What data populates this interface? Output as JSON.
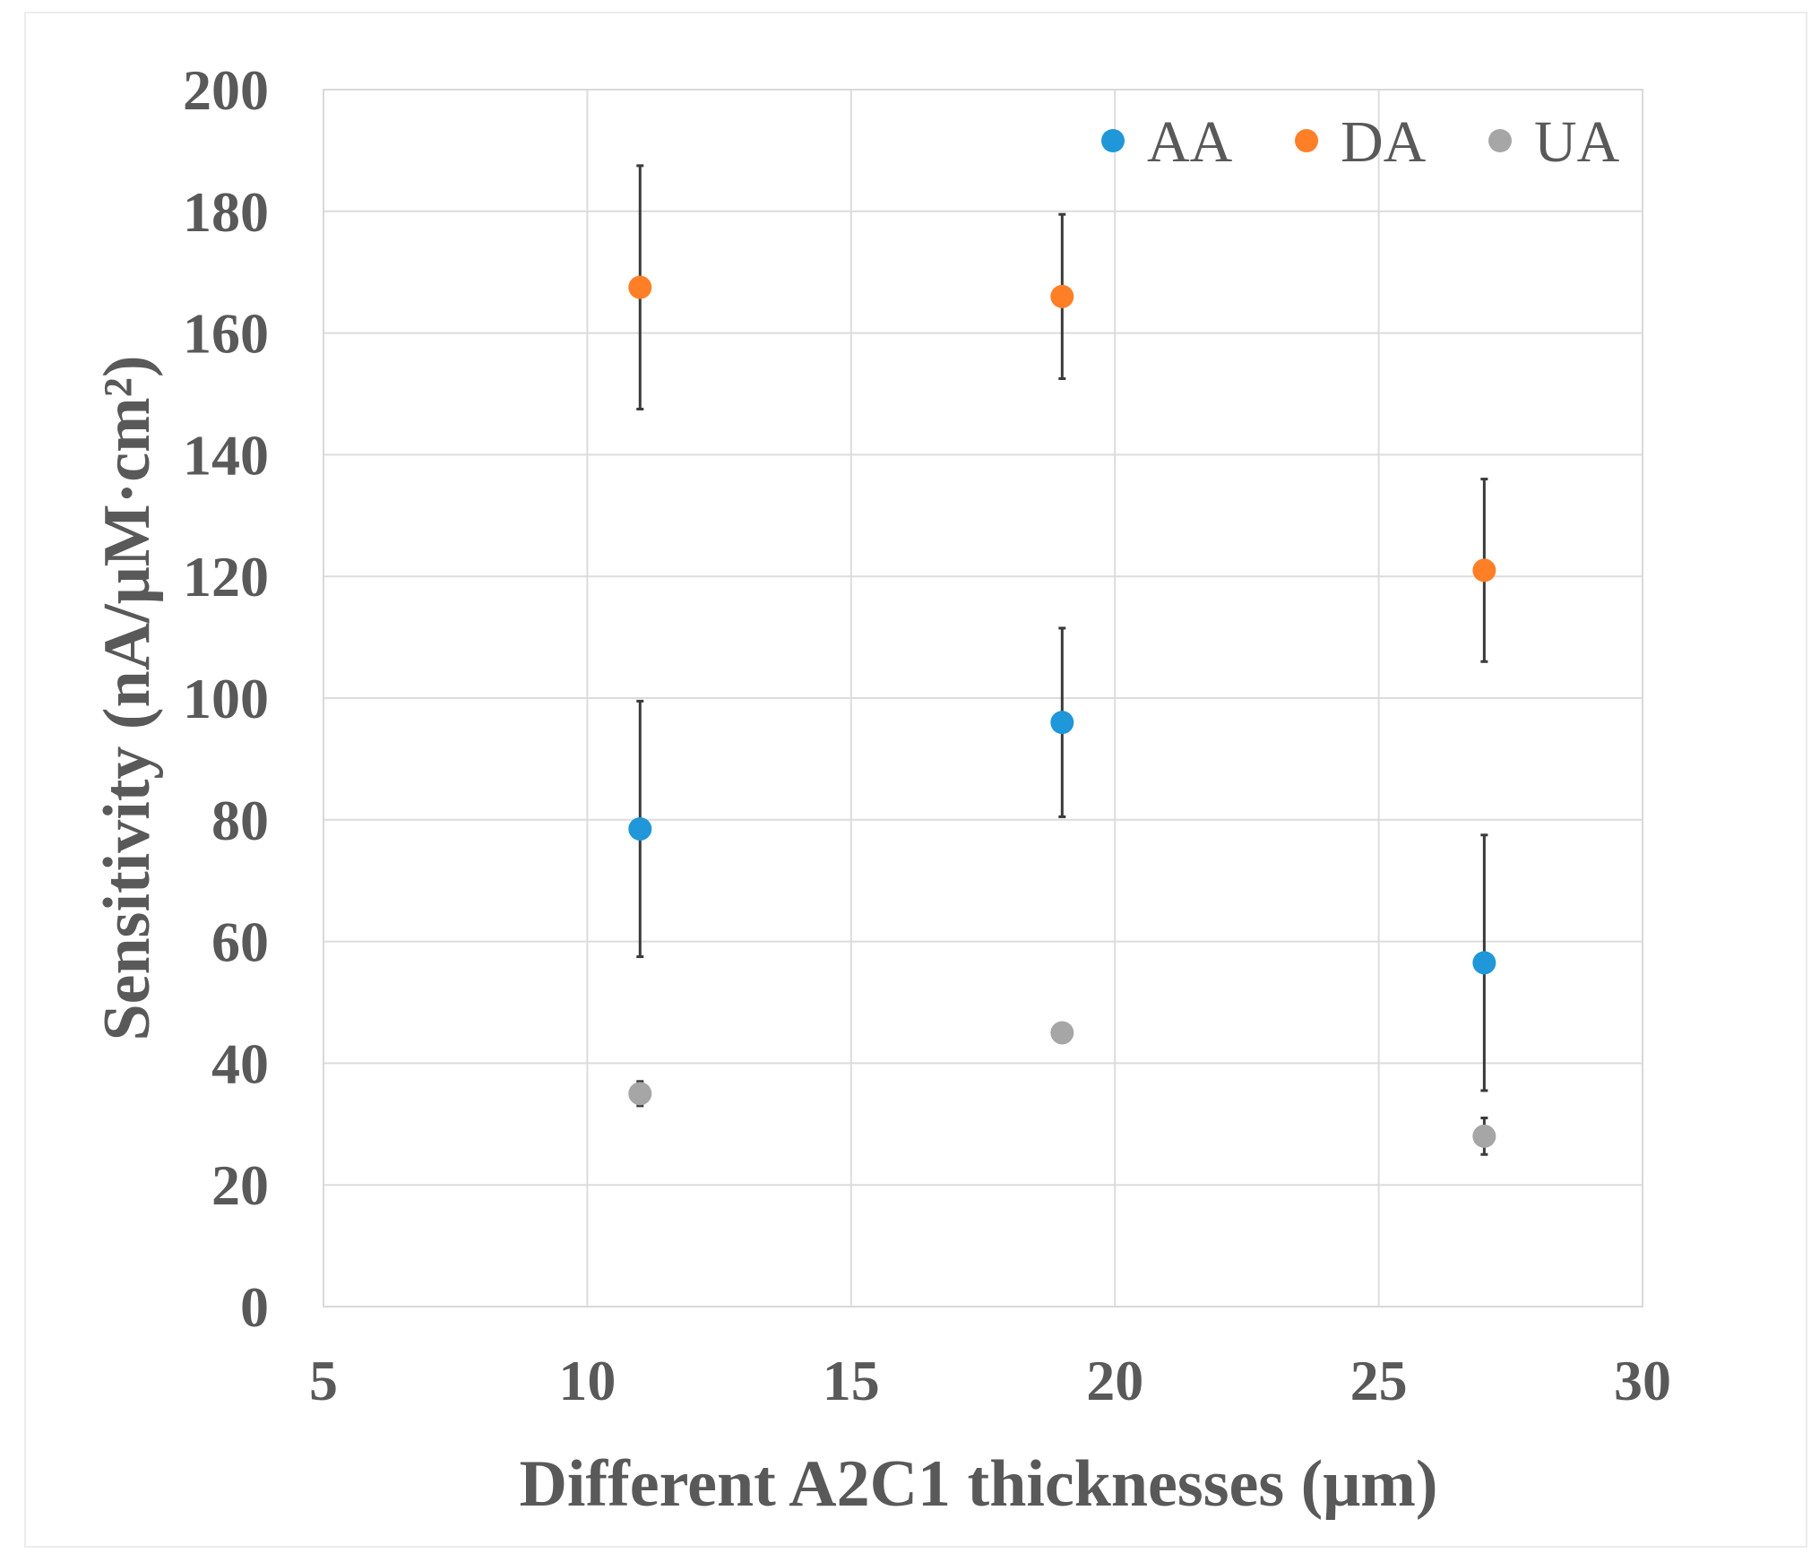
{
  "chart_data": {
    "type": "scatter",
    "title": "",
    "xlabel": "Different A2C1 thicknesses (μm)",
    "ylabel": "Sensitivity (nA/μM·cm²)",
    "xlim": [
      5,
      30
    ],
    "ylim": [
      0,
      200
    ],
    "xticks": [
      5,
      10,
      15,
      20,
      25,
      30
    ],
    "yticks": [
      0,
      20,
      40,
      60,
      80,
      100,
      120,
      140,
      160,
      180,
      200
    ],
    "grid": true,
    "legend": "top-right",
    "series": [
      {
        "name": "AA",
        "color": "#1f97d8",
        "x": [
          11,
          19,
          27
        ],
        "y": [
          78.5,
          96,
          56.5
        ],
        "error": [
          21,
          15.5,
          21
        ]
      },
      {
        "name": "DA",
        "color": "#ff7f27",
        "x": [
          11,
          19,
          27
        ],
        "y": [
          167.5,
          166,
          121
        ],
        "error": [
          20,
          13.5,
          15
        ]
      },
      {
        "name": "UA",
        "color": "#a6a6a6",
        "x": [
          11,
          19,
          27
        ],
        "y": [
          35,
          45,
          28
        ],
        "error": [
          2,
          1,
          3
        ]
      }
    ]
  }
}
